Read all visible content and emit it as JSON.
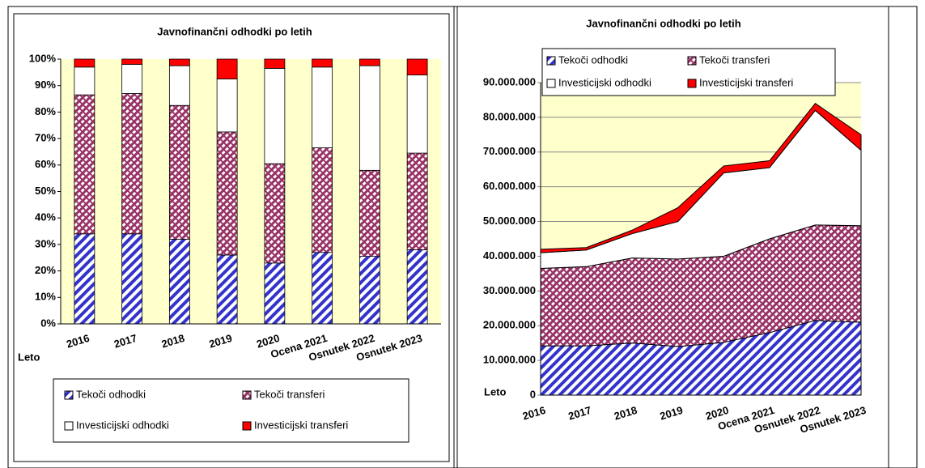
{
  "chart_data": [
    {
      "type": "bar",
      "title": "Javnofinančni odhodki po letih",
      "x_label": "Leto",
      "categories": [
        "2016",
        "2017",
        "2018",
        "2019",
        "2020",
        "Ocena 2021",
        "Osnutek 2022",
        "Osnutek 2023"
      ],
      "series": [
        {
          "name": "Tekoči odhodki",
          "color": "#3333cc",
          "pattern": "diagonal",
          "values": [
            34,
            34,
            32,
            26,
            23,
            27,
            25.5,
            28
          ]
        },
        {
          "name": "Tekoči transferi",
          "color": "#993366",
          "pattern": "crosshatch",
          "values": [
            52.5,
            53,
            50.5,
            46.5,
            37.5,
            39.5,
            32.5,
            36.5
          ]
        },
        {
          "name": "Investicijski odhodki",
          "color": "#ffffff",
          "values": [
            10.5,
            11,
            15,
            20,
            36,
            30.5,
            39.5,
            29.5
          ]
        },
        {
          "name": "Investicijski transferi",
          "color": "#ff0000",
          "values": [
            3,
            2,
            2.5,
            7.5,
            3.5,
            3,
            2.5,
            6
          ]
        }
      ],
      "ylim": [
        0,
        100
      ],
      "yticks": [
        {
          "value": 0,
          "label": "0%"
        },
        {
          "value": 10,
          "label": "10%"
        },
        {
          "value": 20,
          "label": "20%"
        },
        {
          "value": 30,
          "label": "30%"
        },
        {
          "value": 40,
          "label": "40%"
        },
        {
          "value": 50,
          "label": "50%"
        },
        {
          "value": 60,
          "label": "60%"
        },
        {
          "value": 70,
          "label": "70%"
        },
        {
          "value": 80,
          "label": "80%"
        },
        {
          "value": 90,
          "label": "90%"
        },
        {
          "value": 100,
          "label": "100%"
        }
      ],
      "grid": false,
      "background": "#ffffcc",
      "legend": "bottom"
    },
    {
      "type": "area",
      "title": "Javnofinančni odhodki po letih",
      "x_label": "Leto",
      "categories": [
        "2016",
        "2017",
        "2018",
        "2019",
        "2020",
        "Ocena 2021",
        "Osnutek 2022",
        "Osnutek 2023"
      ],
      "series": [
        {
          "name": "Tekoči odhodki",
          "color": "#3333cc",
          "pattern": "diagonal",
          "values": [
            14200000,
            14200000,
            15000000,
            14000000,
            15200000,
            18000000,
            21500000,
            21000000
          ]
        },
        {
          "name": "Tekoči transferi",
          "color": "#993366",
          "pattern": "crosshatch",
          "values": [
            22300000,
            22800000,
            24500000,
            25200000,
            24800000,
            27000000,
            27500000,
            27800000
          ]
        },
        {
          "name": "Investicijski odhodki",
          "color": "#ffffff",
          "values": [
            4500000,
            4800000,
            7000000,
            10800000,
            24000000,
            20500000,
            33000000,
            21700000
          ]
        },
        {
          "name": "Investicijski transferi",
          "color": "#ff0000",
          "values": [
            1000000,
            700000,
            1000000,
            4000000,
            2000000,
            2000000,
            2000000,
            4500000
          ]
        }
      ],
      "ylim": [
        0,
        90000000
      ],
      "yticks": [
        0,
        {
          "value": 10000000,
          "label": "10.000.000"
        },
        {
          "value": 20000000,
          "label": "20.000.000"
        },
        {
          "value": 30000000,
          "label": "30.000.000"
        },
        {
          "value": 40000000,
          "label": "40.000.000"
        },
        {
          "value": 50000000,
          "label": "50.000.000"
        },
        {
          "value": 60000000,
          "label": "60.000.000"
        },
        {
          "value": 70000000,
          "label": "70.000.000"
        },
        {
          "value": 80000000,
          "label": "80.000.000"
        },
        {
          "value": 90000000,
          "label": "90.000.000"
        }
      ],
      "grid": true,
      "background": "#ffffcc",
      "legend": "top"
    }
  ]
}
